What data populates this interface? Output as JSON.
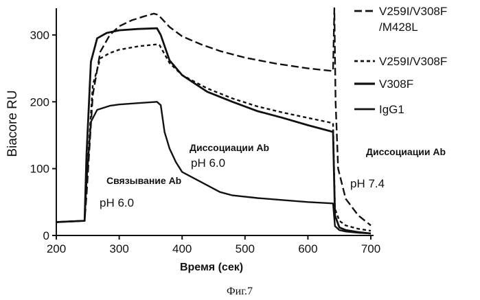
{
  "chart_data": {
    "type": "line",
    "title": "",
    "xlabel": "Время (сек)",
    "ylabel": "Biacore RU",
    "xlim": [
      200,
      700
    ],
    "ylim": [
      0,
      340
    ],
    "x_ticks": [
      "200",
      "300",
      "400",
      "500",
      "600",
      "700"
    ],
    "y_ticks": [
      "0",
      "100",
      "200",
      "300"
    ],
    "grid": false,
    "legend_position": "right",
    "caption": "Фиг.7",
    "annotations": [
      {
        "text": "Диссоциации Ab",
        "style": "bold"
      },
      {
        "text": "pH 6.0",
        "style": "normal"
      },
      {
        "text": "Связывание Ab",
        "style": "bold"
      },
      {
        "text": "pH 6.0",
        "style": "normal"
      },
      {
        "text": "Диссоциации Ab",
        "style": "bold"
      },
      {
        "text": "pH 7.4",
        "style": "normal"
      }
    ],
    "series": [
      {
        "name": "V259I/V308F/M428L",
        "name_lines": [
          "V259I/V308F",
          "/M428L"
        ],
        "dash": "long-dash",
        "x": [
          200,
          245,
          248,
          258,
          270,
          285,
          300,
          320,
          340,
          355,
          362,
          380,
          400,
          430,
          460,
          500,
          550,
          600,
          640,
          642,
          644,
          648,
          660,
          680,
          700
        ],
        "y": [
          20,
          22,
          60,
          210,
          275,
          300,
          313,
          322,
          328,
          332,
          330,
          312,
          298,
          286,
          276,
          266,
          257,
          250,
          246,
          340,
          200,
          100,
          55,
          30,
          15
        ]
      },
      {
        "name": "V259I/V308F",
        "name_lines": [
          "V259I/V308F"
        ],
        "dash": "short-dash",
        "x": [
          200,
          245,
          248,
          258,
          270,
          285,
          300,
          330,
          360,
          364,
          380,
          400,
          440,
          480,
          520,
          560,
          600,
          640,
          643,
          650,
          660,
          680,
          700
        ],
        "y": [
          20,
          22,
          80,
          225,
          265,
          273,
          278,
          283,
          286,
          285,
          258,
          240,
          220,
          205,
          193,
          184,
          176,
          168,
          40,
          22,
          15,
          10,
          7
        ]
      },
      {
        "name": "V308F",
        "name_lines": [
          "V308F"
        ],
        "dash": "solid-thick",
        "x": [
          200,
          245,
          248,
          255,
          265,
          280,
          300,
          330,
          360,
          366,
          380,
          400,
          440,
          480,
          520,
          560,
          600,
          640,
          643,
          650,
          660,
          680,
          700
        ],
        "y": [
          20,
          22,
          120,
          260,
          295,
          303,
          307,
          309,
          310,
          300,
          262,
          240,
          215,
          200,
          186,
          176,
          165,
          155,
          30,
          12,
          8,
          5,
          3
        ]
      },
      {
        "name": "IgG1",
        "name_lines": [
          "IgG1"
        ],
        "dash": "solid",
        "x": [
          200,
          245,
          248,
          255,
          265,
          285,
          300,
          330,
          360,
          366,
          372,
          380,
          390,
          400,
          460,
          480,
          520,
          560,
          600,
          640,
          643,
          650,
          660,
          680,
          700
        ],
        "y": [
          20,
          22,
          80,
          170,
          188,
          194,
          196,
          198,
          200,
          195,
          155,
          130,
          110,
          95,
          65,
          60,
          56,
          53,
          50,
          48,
          14,
          8,
          6,
          4,
          3
        ]
      }
    ]
  }
}
